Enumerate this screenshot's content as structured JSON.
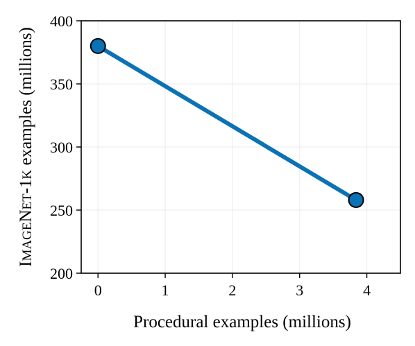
{
  "chart_data": {
    "type": "line",
    "xlabel": "Procedural examples (millions)",
    "ylabel": {
      "parts": [
        {
          "text": "I",
          "size": "large"
        },
        {
          "text": "MAGE",
          "size": "small"
        },
        {
          "text": "N",
          "size": "large"
        },
        {
          "text": "ET",
          "size": "small"
        },
        {
          "text": "-1",
          "size": "large"
        },
        {
          "text": "K",
          "size": "small"
        },
        {
          "text": " examples (millions)",
          "size": "large"
        }
      ]
    },
    "xlim": [
      -0.25,
      4.5
    ],
    "ylim": [
      200,
      400
    ],
    "xticks": [
      0,
      1,
      2,
      3,
      4
    ],
    "yticks": [
      200,
      250,
      300,
      350,
      400
    ],
    "grid": true,
    "series": [
      {
        "color": "#0a72b5",
        "marker_edge": "#000000",
        "x": [
          0,
          3.84
        ],
        "y": [
          380,
          258
        ]
      }
    ]
  }
}
